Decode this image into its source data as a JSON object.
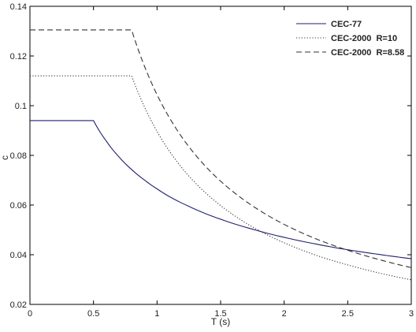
{
  "chart_data": {
    "type": "line",
    "title": "",
    "xlabel": "T (s)",
    "ylabel": "c",
    "xlim": [
      0,
      3
    ],
    "ylim": [
      0.02,
      0.14
    ],
    "x_ticks": [
      0,
      0.5,
      1,
      1.5,
      2,
      2.5,
      3
    ],
    "x_tick_labels": [
      "0",
      "0.5",
      "1",
      "1.5",
      "2",
      "2.5",
      "3"
    ],
    "y_ticks": [
      0.02,
      0.04,
      0.06,
      0.08,
      0.1,
      0.12,
      0.14
    ],
    "y_tick_labels": [
      "0.02",
      "0.04",
      "0.06",
      "0.08",
      "0.1",
      "0.12",
      "0.14"
    ],
    "grid": false,
    "legend_position": "top-right",
    "series": [
      {
        "name": "CEC-77",
        "style": "solid",
        "color": "#1f1f6e",
        "x": [
          0,
          0.5,
          0.6,
          0.7,
          0.8,
          0.9,
          1.0,
          1.25,
          1.5,
          1.75,
          2.0,
          2.25,
          2.5,
          2.75,
          3.0
        ],
        "y": [
          0.094,
          0.094,
          0.0858,
          0.0794,
          0.0743,
          0.0701,
          0.0665,
          0.0595,
          0.0543,
          0.0503,
          0.047,
          0.0443,
          0.042,
          0.0401,
          0.0384
        ]
      },
      {
        "name": "CEC-2000  R=10",
        "style": "dotted",
        "color": "#333333",
        "x": [
          0,
          0.8,
          0.9,
          1.0,
          1.1,
          1.25,
          1.5,
          1.75,
          2.0,
          2.25,
          2.5,
          2.75,
          3.0
        ],
        "y": [
          0.112,
          0.112,
          0.0996,
          0.0896,
          0.0815,
          0.0717,
          0.0598,
          0.0512,
          0.0448,
          0.0398,
          0.0359,
          0.0326,
          0.0299
        ]
      },
      {
        "name": "CEC-2000  R=8.58",
        "style": "dashed",
        "color": "#333333",
        "x": [
          0,
          0.8,
          0.9,
          1.0,
          1.1,
          1.25,
          1.5,
          1.75,
          2.0,
          2.25,
          2.5,
          2.75,
          3.0
        ],
        "y": [
          0.1305,
          0.1305,
          0.116,
          0.1044,
          0.0949,
          0.0835,
          0.0696,
          0.0597,
          0.0522,
          0.0464,
          0.0418,
          0.038,
          0.0348
        ]
      }
    ]
  }
}
